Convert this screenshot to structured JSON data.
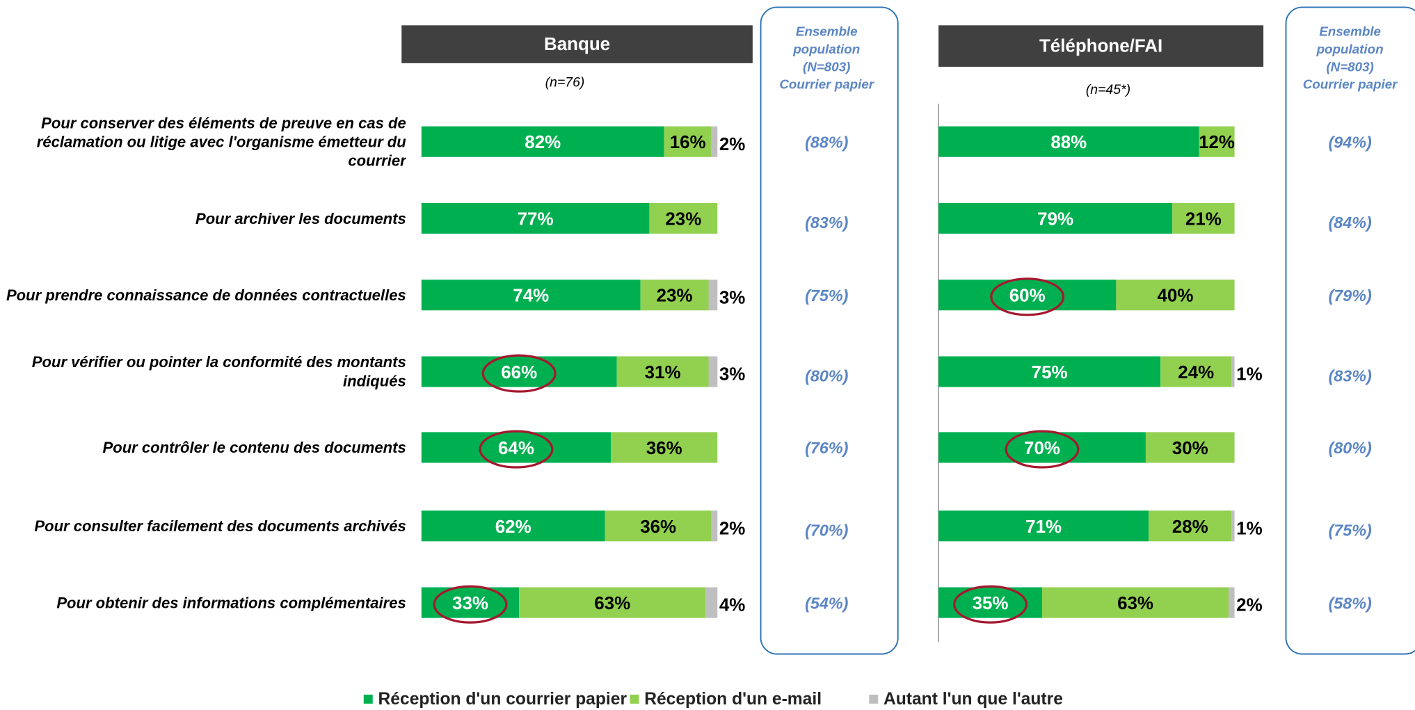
{
  "chart_data": [
    {
      "type": "bar",
      "orientation": "horizontal",
      "stacked": true,
      "title": "Banque",
      "subtitle": "(n=76)",
      "categories": [
        "Pour conserver des éléments de preuve en cas de réclamation ou litige avec l'organisme émetteur du courrier",
        "Pour archiver les documents",
        "Pour prendre connaissance de données contractuelles",
        "Pour vérifier ou pointer la conformité des montants indiqués",
        "Pour contrôler le contenu des documents",
        "Pour consulter facilement des documents archivés",
        "Pour obtenir des informations complémentaires"
      ],
      "xlim": [
        0,
        100
      ],
      "series": [
        {
          "name": "Réception d'un courrier papier",
          "color": "#00b050",
          "values": [
            82,
            77,
            74,
            66,
            64,
            62,
            33
          ],
          "value_labels": [
            "82%",
            "77%",
            "74%",
            "66%",
            "64%",
            "62%",
            "33%"
          ]
        },
        {
          "name": "Réception d'un e-mail",
          "color": "#92d050",
          "values": [
            16,
            23,
            23,
            31,
            36,
            36,
            63
          ],
          "value_labels": [
            "16%",
            "23%",
            "23%",
            "31%",
            "36%",
            "36%",
            "63%"
          ]
        },
        {
          "name": "Autant l'un que l'autre",
          "color": "#bfbfbf",
          "values": [
            2,
            0,
            3,
            3,
            0,
            2,
            4
          ],
          "value_labels": [
            "2%",
            null,
            "3%",
            "3%",
            null,
            "2%",
            "4%"
          ]
        }
      ],
      "highlight": [
        3,
        4,
        6
      ],
      "reference": {
        "title_lines": [
          "Ensemble",
          "population",
          "(N=803)",
          "Courrier papier"
        ],
        "values": [
          88,
          83,
          75,
          80,
          76,
          70,
          54
        ],
        "value_labels": [
          "(88%)",
          "(83%)",
          "(75%)",
          "(80%)",
          "(76%)",
          "(70%)",
          "(54%)"
        ]
      }
    },
    {
      "type": "bar",
      "orientation": "horizontal",
      "stacked": true,
      "title": "Téléphone/FAI",
      "subtitle": "(n=45*)",
      "xlim": [
        0,
        100
      ],
      "series": [
        {
          "name": "Réception d'un courrier papier",
          "color": "#00b050",
          "values": [
            88,
            79,
            60,
            75,
            70,
            71,
            35
          ],
          "value_labels": [
            "88%",
            "79%",
            "60%",
            "75%",
            "70%",
            "71%",
            "35%"
          ]
        },
        {
          "name": "Réception d'un e-mail",
          "color": "#92d050",
          "values": [
            12,
            21,
            40,
            24,
            30,
            28,
            63
          ],
          "value_labels": [
            "12%",
            "21%",
            "40%",
            "24%",
            "30%",
            "28%",
            "63%"
          ]
        },
        {
          "name": "Autant l'un que l'autre",
          "color": "#bfbfbf",
          "values": [
            0,
            0,
            0,
            1,
            0,
            1,
            2
          ],
          "value_labels": [
            null,
            null,
            null,
            "1%",
            null,
            "1%",
            "2%"
          ]
        }
      ],
      "highlight": [
        2,
        4,
        6
      ],
      "reference": {
        "title_lines": [
          "Ensemble",
          "population",
          "(N=803)",
          "Courrier papier"
        ],
        "values": [
          94,
          84,
          79,
          83,
          80,
          75,
          58
        ],
        "value_labels": [
          "(94%)",
          "(84%)",
          "(79%)",
          "(83%)",
          "(80%)",
          "(75%)",
          "(58%)"
        ]
      }
    }
  ]
}
